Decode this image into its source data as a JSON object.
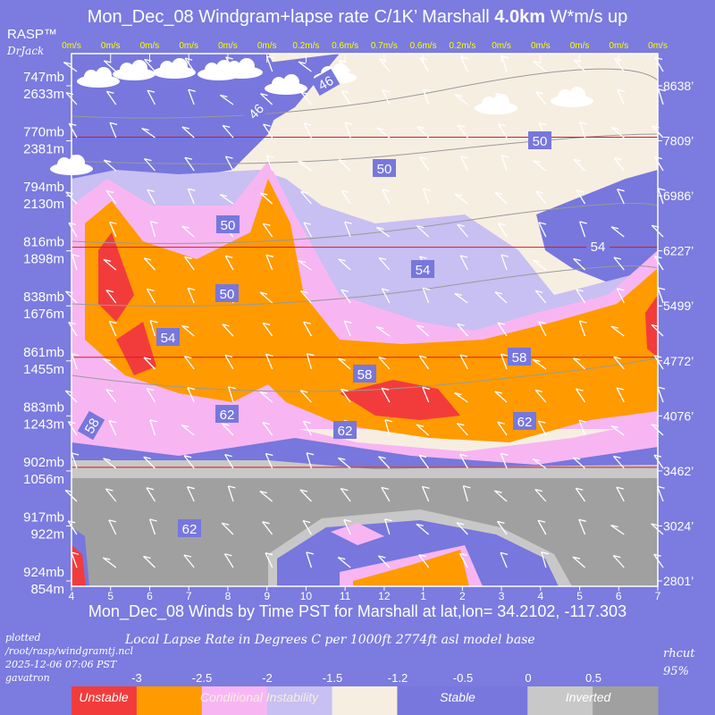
{
  "header": {
    "title_pre": "Mon_Dec_08 Windgram+lapse rate C/1K’  Marshall ",
    "title_alt": "4.0km",
    "title_post": "  W*m/s up",
    "rasp": "RASP™",
    "drjack": "DrJack"
  },
  "footer": {
    "bottom_title": "Mon_Dec_08 Winds by Time PST for Marshall at lat,lon= 34.2102, -117.303",
    "plotted": "plotted",
    "path": "/root/rasp/windgramtj.ncl",
    "timestamp": "2025-12-06 07:06 PST",
    "user": "gavatron",
    "lapse_caption": "Local Lapse Rate in Degrees C per 1000ft  2774ft asl model base",
    "rhcut_label": "rhcut",
    "rhcut_value": "95%"
  },
  "colors": {
    "background": "#7b7be0",
    "stable": "#7777dd",
    "unstable": "#f23c3c",
    "conditional": "#ff9a00",
    "pink": "#f7b6f2",
    "lavender": "#c8bff2",
    "cream": "#f7eee2",
    "inverted_light": "#c8c8c8",
    "inverted_dark": "#a0a0a0",
    "wstar": "#ffff00",
    "hline": "#d81818"
  },
  "chart_data": {
    "type": "heatmap",
    "title": "Mon_Dec_08 Windgram+lapse rate C/1K’  Marshall 4.0km  W*m/s up",
    "xlabel": "Mon_Dec_08 Winds by Time PST for Marshall at lat,lon= 34.2102, -117.303",
    "x_ticks": [
      "4",
      "5",
      "6",
      "7",
      "8",
      "9",
      "10",
      "11",
      "12",
      "1",
      "2",
      "3",
      "4",
      "5",
      "6",
      "7"
    ],
    "wstar_top": [
      "0m/s",
      "0m/s",
      "0m/s",
      "0m/s",
      "0m/s",
      "0m/s",
      "0.2m/s",
      "0.6m/s",
      "0.7m/s",
      "0.6m/s",
      "0.2m/s",
      "0m/s",
      "0m/s",
      "0m/s",
      "0m/s",
      "0m/s"
    ],
    "left_axis": [
      {
        "mb": "747mb",
        "m": "2633m"
      },
      {
        "mb": "770mb",
        "m": "2381m"
      },
      {
        "mb": "794mb",
        "m": "2130m"
      },
      {
        "mb": "816mb",
        "m": "1898m"
      },
      {
        "mb": "838mb",
        "m": "1676m"
      },
      {
        "mb": "861mb",
        "m": "1455m"
      },
      {
        "mb": "883mb",
        "m": "1243m"
      },
      {
        "mb": "902mb",
        "m": "1056m"
      },
      {
        "mb": "917mb",
        "m": "922m"
      },
      {
        "mb": "924mb",
        "m": "854m"
      }
    ],
    "right_axis": [
      "8638’",
      "7809’",
      "6986’",
      "6227’",
      "5499’",
      "4772’",
      "4076’",
      "3462’",
      "3024’",
      "2801’"
    ],
    "contour_labels": [
      "46",
      "46",
      "50",
      "50",
      "50",
      "50",
      "54",
      "54",
      "54",
      "58",
      "58",
      "58",
      "62",
      "62",
      "62",
      "62",
      "62"
    ],
    "legend": {
      "ticks": [
        "-3",
        "-2.5",
        "-2",
        "-1.5",
        "-1.2",
        "-0.5",
        "0",
        "0.5"
      ],
      "categories": [
        "Unstable",
        "Conditional Instability",
        "Stable",
        "Inverted"
      ]
    }
  }
}
